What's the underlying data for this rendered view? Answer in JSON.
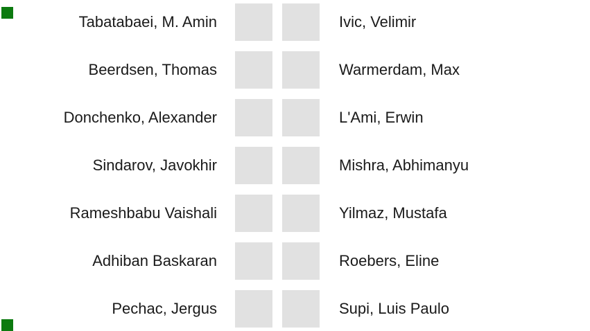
{
  "colors": {
    "box_gray": "#e1e1e1",
    "text_color": "#1a1a1a",
    "marker_green": "#0c7a0f"
  },
  "pairings": {
    "rows": [
      {
        "left": "Tabatabaei, M. Amin",
        "right": "Ivic, Velimir"
      },
      {
        "left": "Beerdsen, Thomas",
        "right": "Warmerdam, Max"
      },
      {
        "left": "Donchenko, Alexander",
        "right": "L'Ami, Erwin"
      },
      {
        "left": "Sindarov, Javokhir",
        "right": "Mishra, Abhimanyu"
      },
      {
        "left": "Rameshbabu Vaishali",
        "right": "Yilmaz, Mustafa"
      },
      {
        "left": "Adhiban Baskaran",
        "right": "Roebers, Eline"
      },
      {
        "left": "Pechac, Jergus",
        "right": "Supi, Luis Paulo"
      }
    ]
  }
}
